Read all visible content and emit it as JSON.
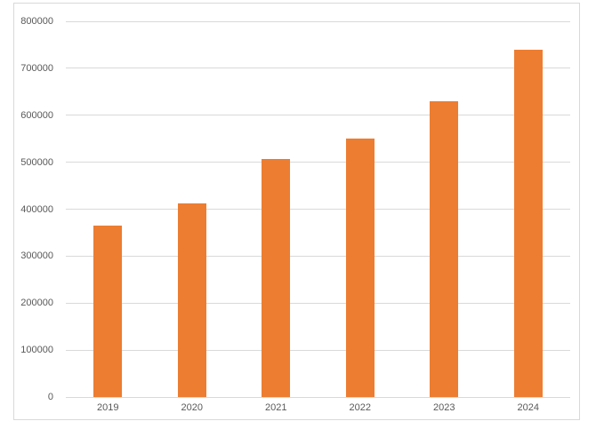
{
  "chart_data": {
    "type": "bar",
    "title": "",
    "xlabel": "",
    "ylabel": "",
    "categories": [
      "2019",
      "2020",
      "2021",
      "2022",
      "2023",
      "2024"
    ],
    "values": [
      365000,
      412000,
      506000,
      551000,
      630000,
      740000
    ],
    "ylim": [
      0,
      800000
    ],
    "ytick_step": 100000,
    "ytick_labels": [
      "0",
      "100000",
      "200000",
      "300000",
      "400000",
      "500000",
      "600000",
      "700000",
      "800000"
    ],
    "grid": true,
    "legend_position": "none",
    "colors": {
      "bar": "#ED7D31",
      "gridline": "#D9D9D9",
      "axis_line": "#D9D9D9",
      "tick_label": "#595959",
      "frame_border": "#D9D9D9",
      "background": "#FFFFFF"
    }
  }
}
